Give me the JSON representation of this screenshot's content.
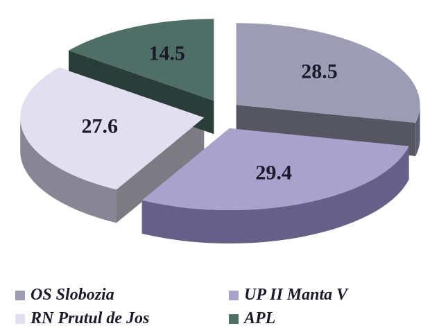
{
  "chart_data": {
    "type": "pie",
    "categories": [
      "OS Slobozia",
      "UP II Manta V",
      "RN Prutul de Jos",
      "APL"
    ],
    "values": [
      28.5,
      29.4,
      27.6,
      14.5
    ],
    "colors": [
      "#9c9cb4",
      "#a9a2cc",
      "#e2e0f0",
      "#4f6e66"
    ]
  }
}
